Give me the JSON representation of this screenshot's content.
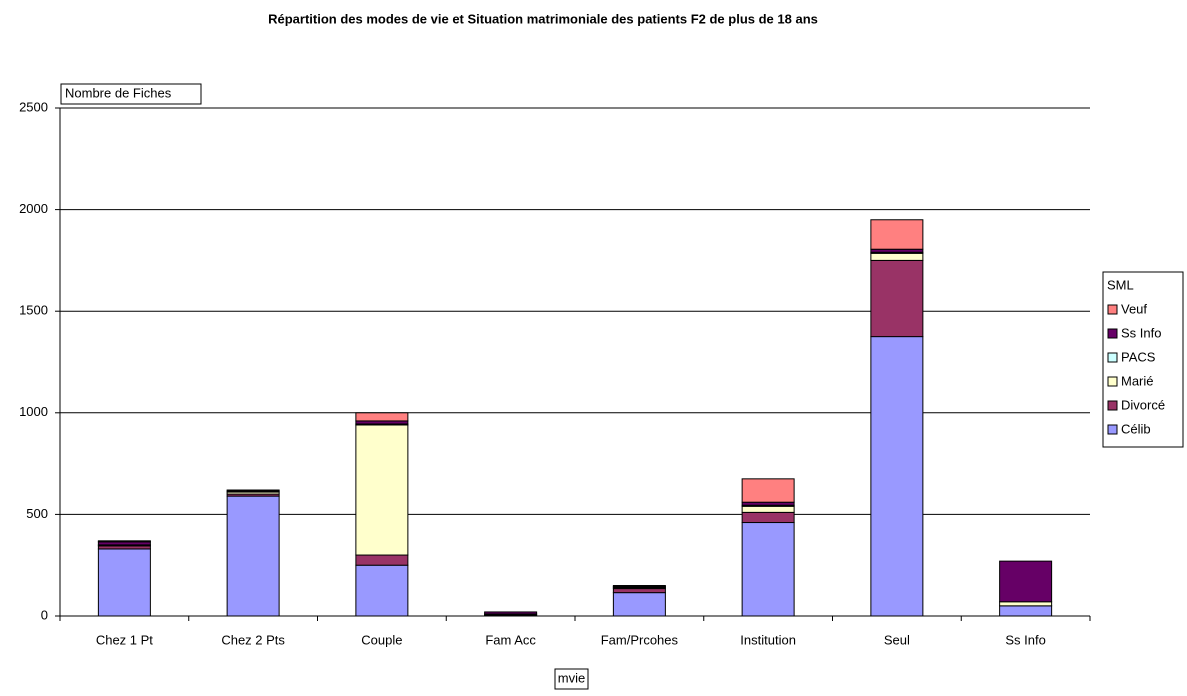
{
  "chart_data": {
    "type": "stacked_bar",
    "title": "Répartition des modes de vie et Situation matrimoniale des patients F2 de plus de 18 ans",
    "y_label": "Nombre de Fiches",
    "x_label": "mvie",
    "legend_title": "SML",
    "legend_position": "right",
    "grid": true,
    "categories": [
      "Chez 1 Pt",
      "Chez 2 Pts",
      "Couple",
      "Fam Acc",
      "Fam/Prcohes",
      "Institution",
      "Seul",
      "Ss Info"
    ],
    "series": [
      {
        "name": "Célib",
        "color": "#9999ff",
        "values": [
          330,
          590,
          250,
          5,
          115,
          460,
          1375,
          50
        ]
      },
      {
        "name": "Divorcé",
        "color": "#993366",
        "values": [
          15,
          10,
          50,
          5,
          20,
          50,
          375,
          0
        ]
      },
      {
        "name": "Marié",
        "color": "#ffffcc",
        "values": [
          5,
          10,
          640,
          0,
          5,
          30,
          35,
          20
        ]
      },
      {
        "name": "PACS",
        "color": "#ccffff",
        "values": [
          0,
          0,
          5,
          0,
          0,
          5,
          5,
          0
        ]
      },
      {
        "name": "Ss Info",
        "color": "#660066",
        "values": [
          15,
          5,
          15,
          10,
          5,
          15,
          15,
          200
        ]
      },
      {
        "name": "Veuf",
        "color": "#ff8080",
        "values": [
          5,
          5,
          40,
          0,
          5,
          115,
          145,
          0
        ]
      }
    ],
    "ylim": [
      0,
      2500
    ],
    "yticks": [
      0,
      500,
      1000,
      1500,
      2000,
      2500
    ]
  }
}
